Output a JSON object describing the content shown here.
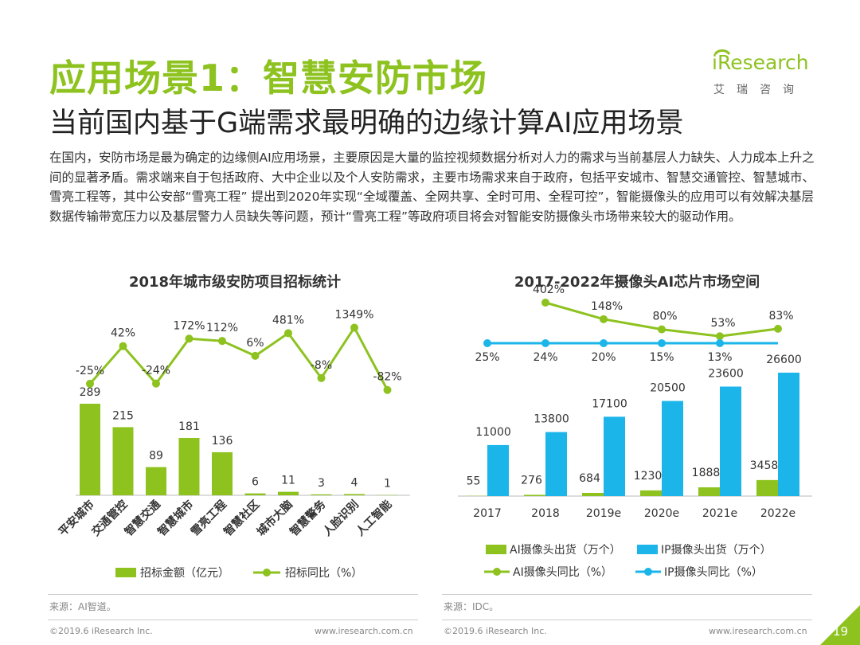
{
  "header": {
    "title": "应用场景1：智慧安防市场",
    "subtitle": "当前国内基于G端需求最明确的边缘计算AI应用场景",
    "body": "在国内，安防市场是最为确定的边缘侧AI应用场景，主要原因是大量的监控视频数据分析对人力的需求与当前基层人力缺失、人力成本上升之间的显著矛盾。需求端来自于包括政府、大中企业以及个人安防需求，主要市场需求来自于政府，包括平安城市、智慧交通管控、智慧城市、雪亮工程等，其中公安部“雪亮工程” 提出到2020年实现“全域覆盖、全网共享、全时可用、全程可控”，智能摄像头的应用可以有效解决基层数据传输带宽压力以及基层警力人员缺失等问题，预计“雪亮工程”等政府项目将会对智能安防摄像头市场带来较大的驱动作用。"
  },
  "logo": {
    "name": "iResearch",
    "sub": "艾瑞咨询"
  },
  "colors": {
    "green": "#8dc21f",
    "blue": "#1bb5ea",
    "title_green": "#8dc21f"
  },
  "chart_data": [
    {
      "type": "bar",
      "title": "2018年城市级安防项目招标统计",
      "categories": [
        "平安城市",
        "交通管控",
        "智慧交通",
        "智慧城市",
        "雪亮工程",
        "智慧社区",
        "城市大脑",
        "智慧警务",
        "人脸识别",
        "人工智能"
      ],
      "series": [
        {
          "name": "招标金额（亿元）",
          "type": "bar",
          "values": [
            289,
            215,
            89,
            181,
            136,
            6,
            11,
            3,
            4,
            1
          ]
        },
        {
          "name": "招标同比（%）",
          "type": "line",
          "values": [
            -25,
            42,
            -24,
            172,
            112,
            6,
            481,
            -8,
            1349,
            -82
          ],
          "labels": [
            "-25%",
            "42%",
            "-24%",
            "172%",
            "112%",
            "6%",
            "481%",
            "-8%",
            "1349%",
            "-82%"
          ]
        }
      ]
    },
    {
      "type": "bar",
      "title": "2017-2022年摄像头AI芯片市场空间",
      "categories": [
        "2017",
        "2018",
        "2019e",
        "2020e",
        "2021e",
        "2022e"
      ],
      "series": [
        {
          "name": "AI摄像头出货（万个）",
          "type": "bar",
          "values": [
            55,
            276,
            684,
            1230,
            1888,
            3458
          ]
        },
        {
          "name": "IP摄像头出货（万个）",
          "type": "bar",
          "values": [
            11000,
            13800,
            17100,
            20500,
            23600,
            26600
          ]
        },
        {
          "name": "AI摄像头同比（%）",
          "type": "line",
          "values": [
            null,
            402,
            148,
            80,
            53,
            83
          ],
          "labels": [
            "",
            "402%",
            "148%",
            "80%",
            "53%",
            "83%"
          ]
        },
        {
          "name": "IP摄像头同比（%）",
          "type": "line",
          "values": [
            25,
            24,
            20,
            15,
            13,
            null
          ],
          "labels": [
            "25%",
            "24%",
            "20%",
            "15%",
            "13%",
            ""
          ]
        }
      ]
    }
  ],
  "sources": {
    "left": "来源：AI智道。",
    "right": "来源：IDC。"
  },
  "footer": {
    "copyright_left": "©2019.6 iResearch Inc.",
    "url_left": "www.iresearch.com.cn",
    "copyright_right": "©2019.6 iResearch Inc.",
    "url_right": "www.iresearch.com.cn",
    "page": "19"
  }
}
